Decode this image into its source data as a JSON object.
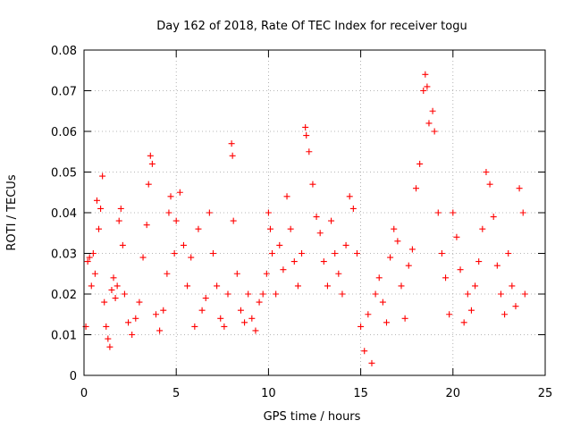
{
  "chart_data": {
    "type": "scatter",
    "title": "Day 162 of 2018, Rate Of TEC Index for receiver togu",
    "xlabel": "GPS time / hours",
    "ylabel": "ROTI / TECUs",
    "xlim": [
      0,
      25
    ],
    "ylim": [
      0,
      0.08
    ],
    "xticks": [
      0,
      5,
      10,
      15,
      20,
      25
    ],
    "yticks": [
      0,
      0.01,
      0.02,
      0.03,
      0.04,
      0.05,
      0.06,
      0.07,
      0.08
    ],
    "grid": true,
    "marker": "+",
    "marker_color": "#ff0000",
    "series": [
      {
        "name": "ROTI",
        "points": [
          [
            0.1,
            0.012
          ],
          [
            0.2,
            0.028
          ],
          [
            0.3,
            0.029
          ],
          [
            0.4,
            0.022
          ],
          [
            0.5,
            0.03
          ],
          [
            0.6,
            0.025
          ],
          [
            0.7,
            0.043
          ],
          [
            0.8,
            0.036
          ],
          [
            0.9,
            0.041
          ],
          [
            1.0,
            0.049
          ],
          [
            1.1,
            0.018
          ],
          [
            1.2,
            0.012
          ],
          [
            1.3,
            0.009
          ],
          [
            1.4,
            0.007
          ],
          [
            1.5,
            0.021
          ],
          [
            1.6,
            0.024
          ],
          [
            1.7,
            0.019
          ],
          [
            1.8,
            0.022
          ],
          [
            1.9,
            0.038
          ],
          [
            2.0,
            0.041
          ],
          [
            2.1,
            0.032
          ],
          [
            2.2,
            0.02
          ],
          [
            2.4,
            0.013
          ],
          [
            2.6,
            0.01
          ],
          [
            2.8,
            0.014
          ],
          [
            3.0,
            0.018
          ],
          [
            3.2,
            0.029
          ],
          [
            3.4,
            0.037
          ],
          [
            3.5,
            0.047
          ],
          [
            3.6,
            0.054
          ],
          [
            3.7,
            0.052
          ],
          [
            3.9,
            0.015
          ],
          [
            4.1,
            0.011
          ],
          [
            4.3,
            0.016
          ],
          [
            4.5,
            0.025
          ],
          [
            4.6,
            0.04
          ],
          [
            4.7,
            0.044
          ],
          [
            4.9,
            0.03
          ],
          [
            5.0,
            0.038
          ],
          [
            5.2,
            0.045
          ],
          [
            5.4,
            0.032
          ],
          [
            5.6,
            0.022
          ],
          [
            5.8,
            0.029
          ],
          [
            6.0,
            0.012
          ],
          [
            6.2,
            0.036
          ],
          [
            6.4,
            0.016
          ],
          [
            6.6,
            0.019
          ],
          [
            6.8,
            0.04
          ],
          [
            7.0,
            0.03
          ],
          [
            7.2,
            0.022
          ],
          [
            7.4,
            0.014
          ],
          [
            7.6,
            0.012
          ],
          [
            7.8,
            0.02
          ],
          [
            8.0,
            0.057
          ],
          [
            8.05,
            0.054
          ],
          [
            8.1,
            0.038
          ],
          [
            8.3,
            0.025
          ],
          [
            8.5,
            0.016
          ],
          [
            8.7,
            0.013
          ],
          [
            8.9,
            0.02
          ],
          [
            9.1,
            0.014
          ],
          [
            9.3,
            0.011
          ],
          [
            9.5,
            0.018
          ],
          [
            9.7,
            0.02
          ],
          [
            9.9,
            0.025
          ],
          [
            10.0,
            0.04
          ],
          [
            10.1,
            0.036
          ],
          [
            10.2,
            0.03
          ],
          [
            10.4,
            0.02
          ],
          [
            10.6,
            0.032
          ],
          [
            10.8,
            0.026
          ],
          [
            11.0,
            0.044
          ],
          [
            11.2,
            0.036
          ],
          [
            11.4,
            0.028
          ],
          [
            11.6,
            0.022
          ],
          [
            11.8,
            0.03
          ],
          [
            12.0,
            0.061
          ],
          [
            12.05,
            0.059
          ],
          [
            12.2,
            0.055
          ],
          [
            12.4,
            0.047
          ],
          [
            12.6,
            0.039
          ],
          [
            12.8,
            0.035
          ],
          [
            13.0,
            0.028
          ],
          [
            13.2,
            0.022
          ],
          [
            13.4,
            0.038
          ],
          [
            13.6,
            0.03
          ],
          [
            13.8,
            0.025
          ],
          [
            14.0,
            0.02
          ],
          [
            14.2,
            0.032
          ],
          [
            14.4,
            0.044
          ],
          [
            14.6,
            0.041
          ],
          [
            14.8,
            0.03
          ],
          [
            15.0,
            0.012
          ],
          [
            15.2,
            0.006
          ],
          [
            15.4,
            0.015
          ],
          [
            15.6,
            0.003
          ],
          [
            15.8,
            0.02
          ],
          [
            16.0,
            0.024
          ],
          [
            16.2,
            0.018
          ],
          [
            16.4,
            0.013
          ],
          [
            16.6,
            0.029
          ],
          [
            16.8,
            0.036
          ],
          [
            17.0,
            0.033
          ],
          [
            17.2,
            0.022
          ],
          [
            17.4,
            0.014
          ],
          [
            17.6,
            0.027
          ],
          [
            17.8,
            0.031
          ],
          [
            18.0,
            0.046
          ],
          [
            18.2,
            0.052
          ],
          [
            18.4,
            0.07
          ],
          [
            18.5,
            0.074
          ],
          [
            18.6,
            0.071
          ],
          [
            18.7,
            0.062
          ],
          [
            18.9,
            0.065
          ],
          [
            19.0,
            0.06
          ],
          [
            19.2,
            0.04
          ],
          [
            19.4,
            0.03
          ],
          [
            19.6,
            0.024
          ],
          [
            19.8,
            0.015
          ],
          [
            20.0,
            0.04
          ],
          [
            20.2,
            0.034
          ],
          [
            20.4,
            0.026
          ],
          [
            20.6,
            0.013
          ],
          [
            20.8,
            0.02
          ],
          [
            21.0,
            0.016
          ],
          [
            21.2,
            0.022
          ],
          [
            21.4,
            0.028
          ],
          [
            21.6,
            0.036
          ],
          [
            21.8,
            0.05
          ],
          [
            22.0,
            0.047
          ],
          [
            22.2,
            0.039
          ],
          [
            22.4,
            0.027
          ],
          [
            22.6,
            0.02
          ],
          [
            22.8,
            0.015
          ],
          [
            23.0,
            0.03
          ],
          [
            23.2,
            0.022
          ],
          [
            23.4,
            0.017
          ],
          [
            23.6,
            0.046
          ],
          [
            23.8,
            0.04
          ],
          [
            23.9,
            0.02
          ]
        ]
      }
    ]
  }
}
